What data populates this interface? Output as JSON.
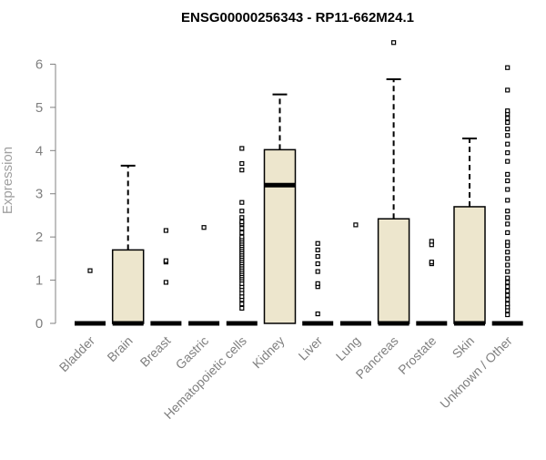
{
  "chart_data": {
    "type": "boxplot",
    "title": "ENSG00000256343 - RP11-662M24.1",
    "xlabel": "",
    "ylabel": "Expression",
    "ylim": [
      0,
      6.6
    ],
    "yticks": [
      0,
      1,
      2,
      3,
      4,
      5,
      6
    ],
    "box_fill": "#ede6cd",
    "categories": [
      "Bladder",
      "Brain",
      "Breast",
      "Gastric",
      "Hematopoietic cells",
      "Kidney",
      "Liver",
      "Lung",
      "Pancreas",
      "Prostate",
      "Skin",
      "Unknown / Other"
    ],
    "boxes": [
      {
        "category": "Bladder",
        "min": 0,
        "q1": 0,
        "median": 0,
        "q3": 0,
        "max": 0,
        "outliers": [
          1.22
        ]
      },
      {
        "category": "Brain",
        "min": 0,
        "q1": 0,
        "median": 0,
        "q3": 1.7,
        "max": 3.65,
        "outliers": []
      },
      {
        "category": "Breast",
        "min": 0,
        "q1": 0,
        "median": 0,
        "q3": 0,
        "max": 0,
        "outliers": [
          0.95,
          1.42,
          1.45,
          2.15
        ]
      },
      {
        "category": "Gastric",
        "min": 0,
        "q1": 0,
        "median": 0,
        "q3": 0,
        "max": 0,
        "outliers": [
          2.22
        ]
      },
      {
        "category": "Hematopoietic cells",
        "min": 0,
        "q1": 0,
        "median": 0,
        "q3": 0,
        "max": 0,
        "outliers": [
          0.35,
          0.45,
          0.55,
          0.62,
          0.7,
          0.78,
          0.85,
          0.92,
          1.0,
          1.05,
          1.1,
          1.15,
          1.2,
          1.25,
          1.3,
          1.35,
          1.4,
          1.45,
          1.5,
          1.55,
          1.6,
          1.65,
          1.7,
          1.75,
          1.8,
          1.85,
          1.9,
          1.95,
          2.0,
          2.1,
          2.2,
          2.3,
          2.35,
          2.45,
          2.6,
          2.8,
          3.55,
          3.7,
          4.05
        ]
      },
      {
        "category": "Kidney",
        "min": 0,
        "q1": 0,
        "median": 3.2,
        "q3": 4.02,
        "max": 5.3,
        "outliers": []
      },
      {
        "category": "Liver",
        "min": 0,
        "q1": 0,
        "median": 0,
        "q3": 0,
        "max": 0,
        "outliers": [
          0.22,
          0.85,
          0.92,
          1.2,
          1.38,
          1.55,
          1.7,
          1.85
        ]
      },
      {
        "category": "Lung",
        "min": 0,
        "q1": 0,
        "median": 0,
        "q3": 0,
        "max": 0,
        "outliers": [
          2.28
        ]
      },
      {
        "category": "Pancreas",
        "min": 0,
        "q1": 0,
        "median": 0,
        "q3": 2.42,
        "max": 5.65,
        "outliers": [
          6.5
        ]
      },
      {
        "category": "Prostate",
        "min": 0,
        "q1": 0,
        "median": 0,
        "q3": 0,
        "max": 0,
        "outliers": [
          1.38,
          1.42,
          1.82,
          1.9
        ]
      },
      {
        "category": "Skin",
        "min": 0,
        "q1": 0,
        "median": 0,
        "q3": 2.7,
        "max": 4.28,
        "outliers": []
      },
      {
        "category": "Unknown / Other",
        "min": 0,
        "q1": 0,
        "median": 0,
        "q3": 0,
        "max": 0,
        "outliers": [
          0.2,
          0.3,
          0.38,
          0.45,
          0.55,
          0.65,
          0.75,
          0.85,
          0.95,
          1.05,
          1.2,
          1.35,
          1.5,
          1.65,
          1.8,
          1.88,
          2.1,
          2.3,
          2.45,
          2.6,
          2.85,
          3.1,
          3.3,
          3.45,
          3.75,
          3.95,
          4.15,
          4.35,
          4.5,
          4.65,
          4.75,
          4.85,
          4.92,
          5.4,
          5.92
        ]
      }
    ]
  }
}
